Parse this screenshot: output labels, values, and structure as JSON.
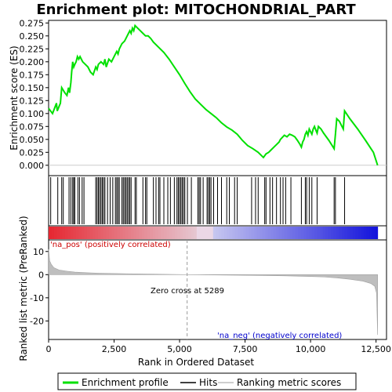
{
  "chart_data": {
    "type": "line",
    "title": "Enrichment plot: MITOCHONDRIAL_PART",
    "xlabel": "Rank in Ordered Dataset",
    "ylabel_top": "Enrichment score (ES)",
    "ylabel_bottom": "Ranked list metric (PreRanked)",
    "xlim": [
      0,
      12900
    ],
    "x_ticks": [
      0,
      2500,
      5000,
      7500,
      10000,
      12500
    ],
    "x_tick_labels": [
      "0",
      "2,500",
      "5,000",
      "7,500",
      "10,000",
      "12,500"
    ],
    "es_ylim": [
      -0.02,
      0.28
    ],
    "es_ticks": [
      0.0,
      0.025,
      0.05,
      0.075,
      0.1,
      0.125,
      0.15,
      0.175,
      0.2,
      0.225,
      0.25,
      0.275
    ],
    "es_tick_labels": [
      "0.000",
      "0.025",
      "0.050",
      "0.075",
      "0.100",
      "0.125",
      "0.150",
      "0.175",
      "0.200",
      "0.225",
      "0.250",
      "0.275"
    ],
    "metric_ylim": [
      -28,
      15
    ],
    "metric_ticks": [
      10,
      0,
      -10,
      -20
    ],
    "metric_tick_labels": [
      "10",
      "0",
      "-10",
      "-20"
    ],
    "annotations": {
      "pos_label": "'na_pos' (positively correlated)",
      "neg_label": "'na_neg' (negatively correlated)",
      "zero_cross": "Zero cross at 5289"
    },
    "zero_cross_rank": 5289,
    "legend": {
      "position": "bottom",
      "entries": [
        "Enrichment profile",
        "Hits",
        "Ranking metric scores"
      ]
    },
    "colors": {
      "es_line": "#00e000",
      "hits": "#000000",
      "metric": "#bebebe",
      "pos_text": "#cc0000",
      "neg_text": "#0000cc"
    },
    "es_series": {
      "name": "Enrichment profile",
      "x": [
        0,
        150,
        300,
        330,
        450,
        500,
        560,
        620,
        700,
        760,
        800,
        850,
        880,
        920,
        960,
        1000,
        1050,
        1100,
        1150,
        1200,
        1250,
        1300,
        1400,
        1500,
        1600,
        1700,
        1800,
        1850,
        1900,
        2000,
        2100,
        2150,
        2200,
        2300,
        2400,
        2500,
        2600,
        2650,
        2700,
        2800,
        2900,
        3000,
        3050,
        3100,
        3150,
        3200,
        3250,
        3300,
        3400,
        3500,
        3600,
        3700,
        3800,
        3900,
        4000,
        4200,
        4400,
        4600,
        4800,
        5000,
        5200,
        5400,
        5600,
        5800,
        6000,
        6200,
        6400,
        6600,
        6800,
        7000,
        7200,
        7400,
        7600,
        7800,
        8000,
        8100,
        8200,
        8300,
        8400,
        8500,
        8600,
        8700,
        8800,
        8850,
        9000,
        9100,
        9200,
        9300,
        9400,
        9500,
        9600,
        9650,
        9700,
        9750,
        9800,
        9850,
        9900,
        9950,
        10000,
        10050,
        10100,
        10150,
        10200,
        10250,
        10300,
        10400,
        10500,
        10600,
        10700,
        10800,
        10900,
        10950,
        11000,
        11100,
        11200,
        11250,
        11300,
        11500,
        11800,
        12100,
        12400,
        12560
      ],
      "y": [
        0.11,
        0.1,
        0.12,
        0.105,
        0.12,
        0.15,
        0.145,
        0.14,
        0.135,
        0.15,
        0.14,
        0.16,
        0.18,
        0.2,
        0.19,
        0.195,
        0.2,
        0.21,
        0.205,
        0.21,
        0.205,
        0.2,
        0.195,
        0.19,
        0.18,
        0.175,
        0.19,
        0.185,
        0.195,
        0.2,
        0.195,
        0.205,
        0.19,
        0.205,
        0.2,
        0.21,
        0.22,
        0.215,
        0.225,
        0.235,
        0.24,
        0.25,
        0.255,
        0.26,
        0.255,
        0.265,
        0.26,
        0.27,
        0.265,
        0.26,
        0.255,
        0.25,
        0.25,
        0.245,
        0.238,
        0.228,
        0.218,
        0.205,
        0.19,
        0.175,
        0.158,
        0.142,
        0.128,
        0.118,
        0.108,
        0.1,
        0.092,
        0.082,
        0.074,
        0.068,
        0.06,
        0.048,
        0.038,
        0.032,
        0.025,
        0.02,
        0.015,
        0.022,
        0.025,
        0.03,
        0.035,
        0.04,
        0.045,
        0.05,
        0.058,
        0.055,
        0.06,
        0.058,
        0.055,
        0.048,
        0.04,
        0.035,
        0.045,
        0.05,
        0.06,
        0.065,
        0.058,
        0.07,
        0.065,
        0.06,
        0.07,
        0.075,
        0.068,
        0.062,
        0.075,
        0.07,
        0.062,
        0.055,
        0.048,
        0.04,
        0.032,
        0.06,
        0.09,
        0.085,
        0.075,
        0.07,
        0.105,
        0.09,
        0.07,
        0.048,
        0.025,
        0.0
      ]
    },
    "hit_ranks": [
      80,
      350,
      500,
      560,
      780,
      850,
      920,
      960,
      1000,
      1120,
      1180,
      1280,
      1350,
      1800,
      1850,
      1900,
      1950,
      2000,
      2050,
      2100,
      2150,
      2250,
      2350,
      2450,
      2550,
      2600,
      2650,
      2700,
      2800,
      2850,
      2900,
      2950,
      3000,
      3050,
      3100,
      3150,
      3300,
      3350,
      3600,
      3700,
      3750,
      4000,
      4100,
      4200,
      4250,
      4400,
      4550,
      4650,
      4800,
      4900,
      4950,
      5000,
      5050,
      5100,
      5150,
      5200,
      5300,
      5450,
      5700,
      5750,
      5800,
      5900,
      6050,
      6100,
      6150,
      6200,
      6300,
      6450,
      6600,
      6800,
      6900,
      7100,
      7200,
      7750,
      7900,
      8000,
      8250,
      8300,
      8450,
      8550,
      8700,
      8850,
      8950,
      9050,
      9250,
      9650,
      9800,
      9850,
      9950,
      10050,
      10250,
      10900,
      10950,
      11300
    ],
    "metric_series": {
      "name": "Ranking metric scores",
      "x": [
        0,
        40,
        100,
        200,
        400,
        700,
        1000,
        1500,
        2000,
        3000,
        4000,
        5000,
        5289,
        6000,
        7000,
        8000,
        9000,
        10000,
        10500,
        11000,
        11500,
        12000,
        12300,
        12450,
        12520,
        12560
      ],
      "y": [
        11,
        6,
        4.5,
        3,
        2,
        1.5,
        1.1,
        0.8,
        0.6,
        0.4,
        0.2,
        0.05,
        0.0,
        -0.1,
        -0.2,
        -0.35,
        -0.5,
        -0.8,
        -1.0,
        -1.4,
        -2.0,
        -2.8,
        -3.8,
        -5.0,
        -8.0,
        -26
      ]
    }
  }
}
